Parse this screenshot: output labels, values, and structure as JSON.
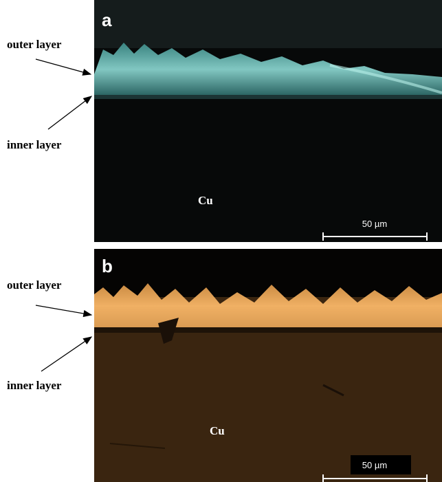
{
  "panels": [
    {
      "label": "a",
      "outer_label": "outer layer",
      "inner_label": "inner layer",
      "material": "Cu",
      "scale_bar": "50 µm"
    },
    {
      "label": "b",
      "outer_label": "outer layer",
      "inner_label": "inner layer",
      "material": "Cu",
      "scale_bar": "50 µm"
    }
  ]
}
